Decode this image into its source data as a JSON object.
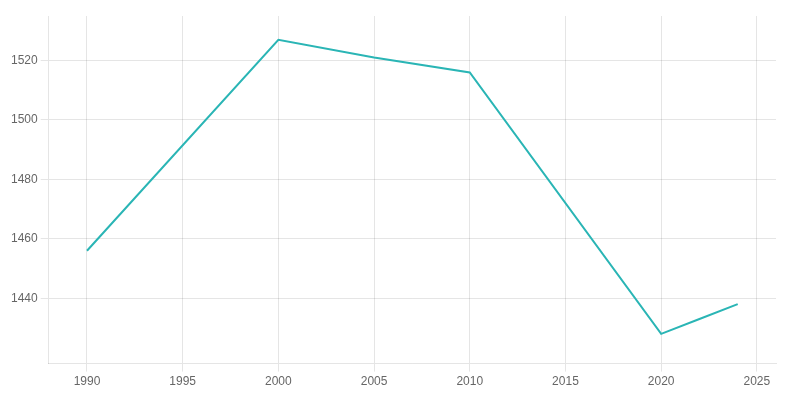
{
  "chart_data": {
    "type": "line",
    "x": [
      1990,
      2000,
      2005,
      2010,
      2020,
      2022,
      2024
    ],
    "values": [
      1456,
      1527,
      1521,
      1516,
      1428,
      1433,
      1438
    ],
    "color": "#2ab5b5",
    "xlim": [
      1988,
      2026
    ],
    "ylim": [
      1418,
      1535
    ],
    "xticks": [
      1990,
      1995,
      2000,
      2005,
      2010,
      2015,
      2020,
      2025
    ],
    "yticks": [
      1440,
      1460,
      1480,
      1500,
      1520
    ],
    "grid": true
  }
}
